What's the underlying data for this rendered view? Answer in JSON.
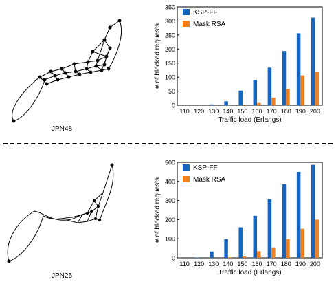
{
  "networks": [
    {
      "name": "JPN48"
    },
    {
      "name": "JPN25"
    }
  ],
  "colors": {
    "ksp": "#1565c0",
    "mask": "#f07f1e"
  },
  "chart_data": [
    {
      "type": "bar",
      "categories": [
        "110",
        "120",
        "130",
        "140",
        "150",
        "160",
        "170",
        "180",
        "190",
        "200"
      ],
      "series": [
        {
          "name": "KSP-FF",
          "values": [
            0,
            0,
            3,
            14,
            52,
            90,
            134,
            193,
            256,
            312
          ]
        },
        {
          "name": "Mask RSA",
          "values": [
            0,
            0,
            0,
            0,
            2,
            8,
            27,
            58,
            106,
            120
          ]
        }
      ],
      "xlabel": "Traffic load (Erlangs)",
      "ylabel": "# of blocked requests",
      "ylim": [
        0,
        350
      ],
      "yticks": [
        "0",
        "50",
        "100",
        "150",
        "200",
        "250",
        "300",
        "350"
      ],
      "legend": "top-left",
      "grid": false
    },
    {
      "type": "bar",
      "categories": [
        "110",
        "120",
        "130",
        "140",
        "150",
        "160",
        "170",
        "180",
        "190",
        "200"
      ],
      "series": [
        {
          "name": "KSP-FF",
          "values": [
            0,
            2,
            33,
            98,
            160,
            220,
            306,
            385,
            450,
            487
          ]
        },
        {
          "name": "Mask RSA",
          "values": [
            0,
            0,
            0,
            3,
            7,
            35,
            55,
            98,
            152,
            200
          ]
        }
      ],
      "xlabel": "Traffic load (Erlangs)",
      "ylabel": "# of blocked requests",
      "ylim": [
        0,
        500
      ],
      "yticks": [
        "0",
        "100",
        "200",
        "300",
        "400",
        "500"
      ],
      "legend": "top-left",
      "grid": false
    }
  ]
}
